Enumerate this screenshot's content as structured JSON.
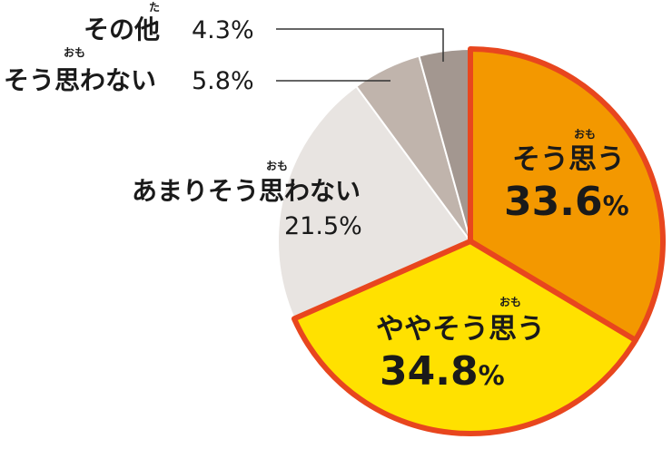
{
  "chart_data": {
    "type": "pie",
    "start": "12 o'clock",
    "direction": "clockwise",
    "slices": [
      {
        "label": "そう思う",
        "ruby": "おも",
        "value": 33.6,
        "display": "33.6",
        "unit": "%",
        "color": "#f39800",
        "highlight": true
      },
      {
        "label": "ややそう思う",
        "ruby": "おも",
        "value": 34.8,
        "display": "34.8",
        "unit": "%",
        "color": "#ffe100",
        "highlight": true
      },
      {
        "label": "あまりそう思わない",
        "ruby": "おも",
        "value": 21.5,
        "display": "21.5%",
        "color": "#e8e4e1",
        "highlight": false
      },
      {
        "label": "そう思わない",
        "ruby": "おも",
        "value": 5.8,
        "display": "5.8%",
        "color": "#c0b4ac",
        "highlight": false
      },
      {
        "label": "その他",
        "ruby": "た",
        "value": 4.3,
        "display": "4.3%",
        "color": "#a39790",
        "highlight": false
      }
    ],
    "highlight_border": "#e8461e",
    "divider_color": "#ffffff"
  }
}
